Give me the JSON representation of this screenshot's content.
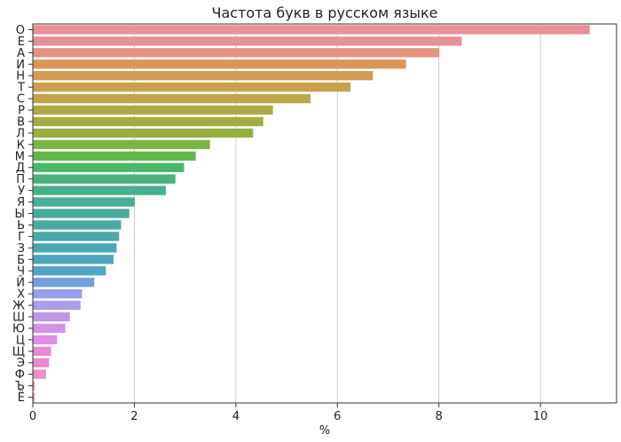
{
  "chart_data": {
    "type": "bar",
    "orientation": "horizontal",
    "title": "Частота букв в русском языке",
    "xlabel": "%",
    "ylabel": "",
    "xlim": [
      0,
      11.5
    ],
    "xticks": [
      0,
      2,
      4,
      6,
      8,
      10
    ],
    "grid": "vertical",
    "categories": [
      "О",
      "Е",
      "А",
      "И",
      "Н",
      "Т",
      "С",
      "Р",
      "В",
      "Л",
      "К",
      "М",
      "Д",
      "П",
      "У",
      "Я",
      "Ы",
      "Ь",
      "Г",
      "З",
      "Б",
      "Ч",
      "Й",
      "Х",
      "Ж",
      "Ш",
      "Ю",
      "Ц",
      "Щ",
      "Э",
      "Ф",
      "Ъ",
      "Ё"
    ],
    "values": [
      10.97,
      8.45,
      8.01,
      7.35,
      6.7,
      6.26,
      5.47,
      4.73,
      4.54,
      4.34,
      3.49,
      3.21,
      2.98,
      2.81,
      2.62,
      2.01,
      1.9,
      1.74,
      1.7,
      1.65,
      1.59,
      1.44,
      1.21,
      0.97,
      0.94,
      0.73,
      0.64,
      0.48,
      0.36,
      0.32,
      0.26,
      0.04,
      0.04
    ],
    "colors": [
      "#e8919a",
      "#e49295",
      "#e3937f",
      "#dc9558",
      "#d39b4e",
      "#c9a14b",
      "#bda548",
      "#aea944",
      "#a3ad46",
      "#95b042",
      "#7db544",
      "#5fb948",
      "#4cb76a",
      "#4bb27c",
      "#49af8a",
      "#4aad95",
      "#4aab9d",
      "#49aaa4",
      "#4aa8aa",
      "#4ba7b1",
      "#4da6bb",
      "#55a4c7",
      "#72a0dc",
      "#98a1e8",
      "#aa9de9",
      "#bd98ea",
      "#d093e8",
      "#df8ee6",
      "#e68ad4",
      "#e78ccb",
      "#e891c5",
      "#e99bc4",
      "#eaa0c4"
    ]
  }
}
